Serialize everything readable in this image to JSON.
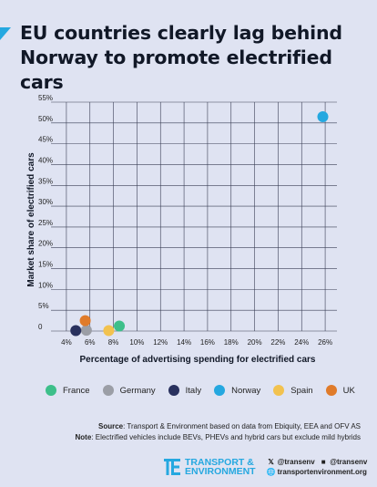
{
  "title": "EU countries clearly lag behind Norway to promote electrified cars",
  "chart_data": {
    "type": "scatter",
    "xlabel": "Percentage of advertising spending for electrified cars",
    "ylabel": "Market share of electrified cars",
    "xlim": [
      3,
      27
    ],
    "ylim": [
      0,
      55
    ],
    "x_ticks": [
      "4%",
      "6%",
      "8%",
      "10%",
      "12%",
      "14%",
      "16%",
      "18%",
      "20%",
      "22%",
      "24%",
      "26%"
    ],
    "y_ticks": [
      "0",
      "5%",
      "10%",
      "15%",
      "20%",
      "25%",
      "30%",
      "35%",
      "40%",
      "45%",
      "50%",
      "55%"
    ],
    "grid": true,
    "legend_position": "bottom",
    "series": [
      {
        "name": "France",
        "color": "#3dbf8a",
        "points": [
          [
            8.5,
            1.2
          ]
        ]
      },
      {
        "name": "Germany",
        "color": "#9b9ea6",
        "points": [
          [
            5.7,
            0.2
          ]
        ]
      },
      {
        "name": "Italy",
        "color": "#29315e",
        "points": [
          [
            4.8,
            0.1
          ]
        ]
      },
      {
        "name": "Norway",
        "color": "#25a8e0",
        "points": [
          [
            25.8,
            51.5
          ]
        ]
      },
      {
        "name": "Spain",
        "color": "#f2c24f",
        "points": [
          [
            7.6,
            0.1
          ]
        ]
      },
      {
        "name": "UK",
        "color": "#e07b2a",
        "points": [
          [
            5.6,
            2.5
          ]
        ]
      }
    ]
  },
  "footer": {
    "source_label": "Source",
    "source_text": ": Transport & Environment based on data from Ebiquity, EEA and OFV AS",
    "note_label": "Note",
    "note_text": ": Electrified vehicles include BEVs, PHEVs and hybrid cars but exclude mild hybrids",
    "logo_line1": "TRANSPORT &",
    "logo_line2": "ENVIRONMENT",
    "twitter": "@transenv",
    "facebook": "@transenv",
    "website": "transportenvironment.org"
  }
}
